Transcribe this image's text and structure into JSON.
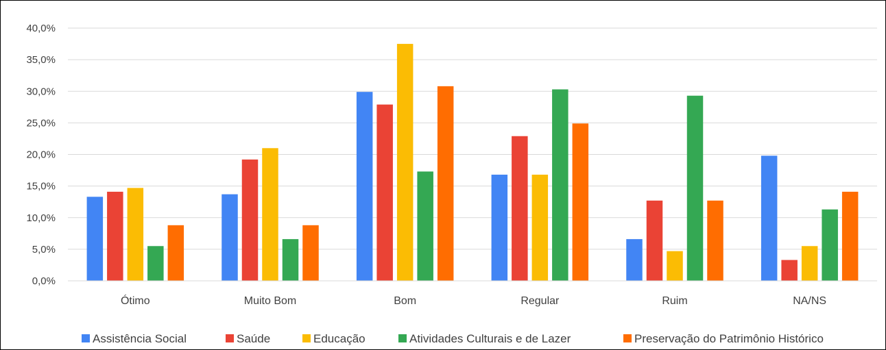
{
  "chart_data": {
    "type": "bar",
    "categories": [
      "Ótimo",
      "Muito Bom",
      "Bom",
      "Regular",
      "Ruim",
      "NA/NS"
    ],
    "series": [
      {
        "name": "Assistência Social",
        "color": "#4285F4",
        "values": [
          13.3,
          13.7,
          29.9,
          16.8,
          6.6,
          19.8
        ]
      },
      {
        "name": "Saúde",
        "color": "#EA4335",
        "values": [
          14.1,
          19.2,
          27.9,
          22.9,
          12.7,
          3.3
        ]
      },
      {
        "name": "Educação",
        "color": "#FBBC04",
        "values": [
          14.7,
          21.0,
          37.5,
          16.8,
          4.7,
          5.5
        ]
      },
      {
        "name": "Atividades Culturais e de Lazer",
        "color": "#34A853",
        "values": [
          5.5,
          6.6,
          17.3,
          30.3,
          29.3,
          11.3
        ]
      },
      {
        "name": "Preservação do Patrimônio Histórico",
        "color": "#FF6D01",
        "values": [
          8.8,
          8.8,
          30.8,
          24.9,
          12.7,
          14.1
        ]
      }
    ],
    "y_ticks": [
      "0,0%",
      "5,0%",
      "10,0%",
      "15,0%",
      "20,0%",
      "25,0%",
      "30,0%",
      "35,0%",
      "40,0%"
    ],
    "ylim": [
      0,
      40
    ],
    "y_unit": "%",
    "grid": true,
    "legend_position": "bottom"
  }
}
